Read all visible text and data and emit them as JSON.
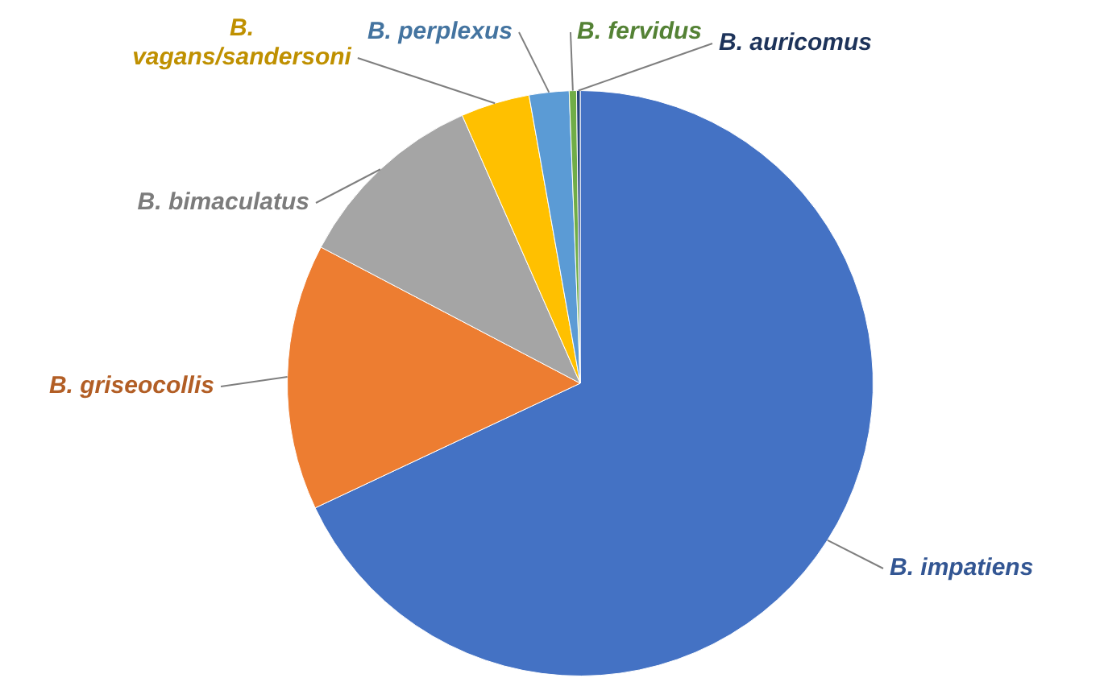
{
  "chart_data": {
    "type": "pie",
    "categories": [
      "B. impatiens",
      "B. griseocollis",
      "B. bimaculatus",
      "B. vagans/sandersoni",
      "B. perplexus",
      "B. fervidus",
      "B. auricomus"
    ],
    "values": [
      68.0,
      14.7,
      10.7,
      3.8,
      2.2,
      0.4,
      0.2
    ],
    "colors": [
      "#4472c4",
      "#ed7d31",
      "#a5a5a5",
      "#ffc000",
      "#5b9bd5",
      "#70ad47",
      "#264478"
    ],
    "legend": false
  }
}
